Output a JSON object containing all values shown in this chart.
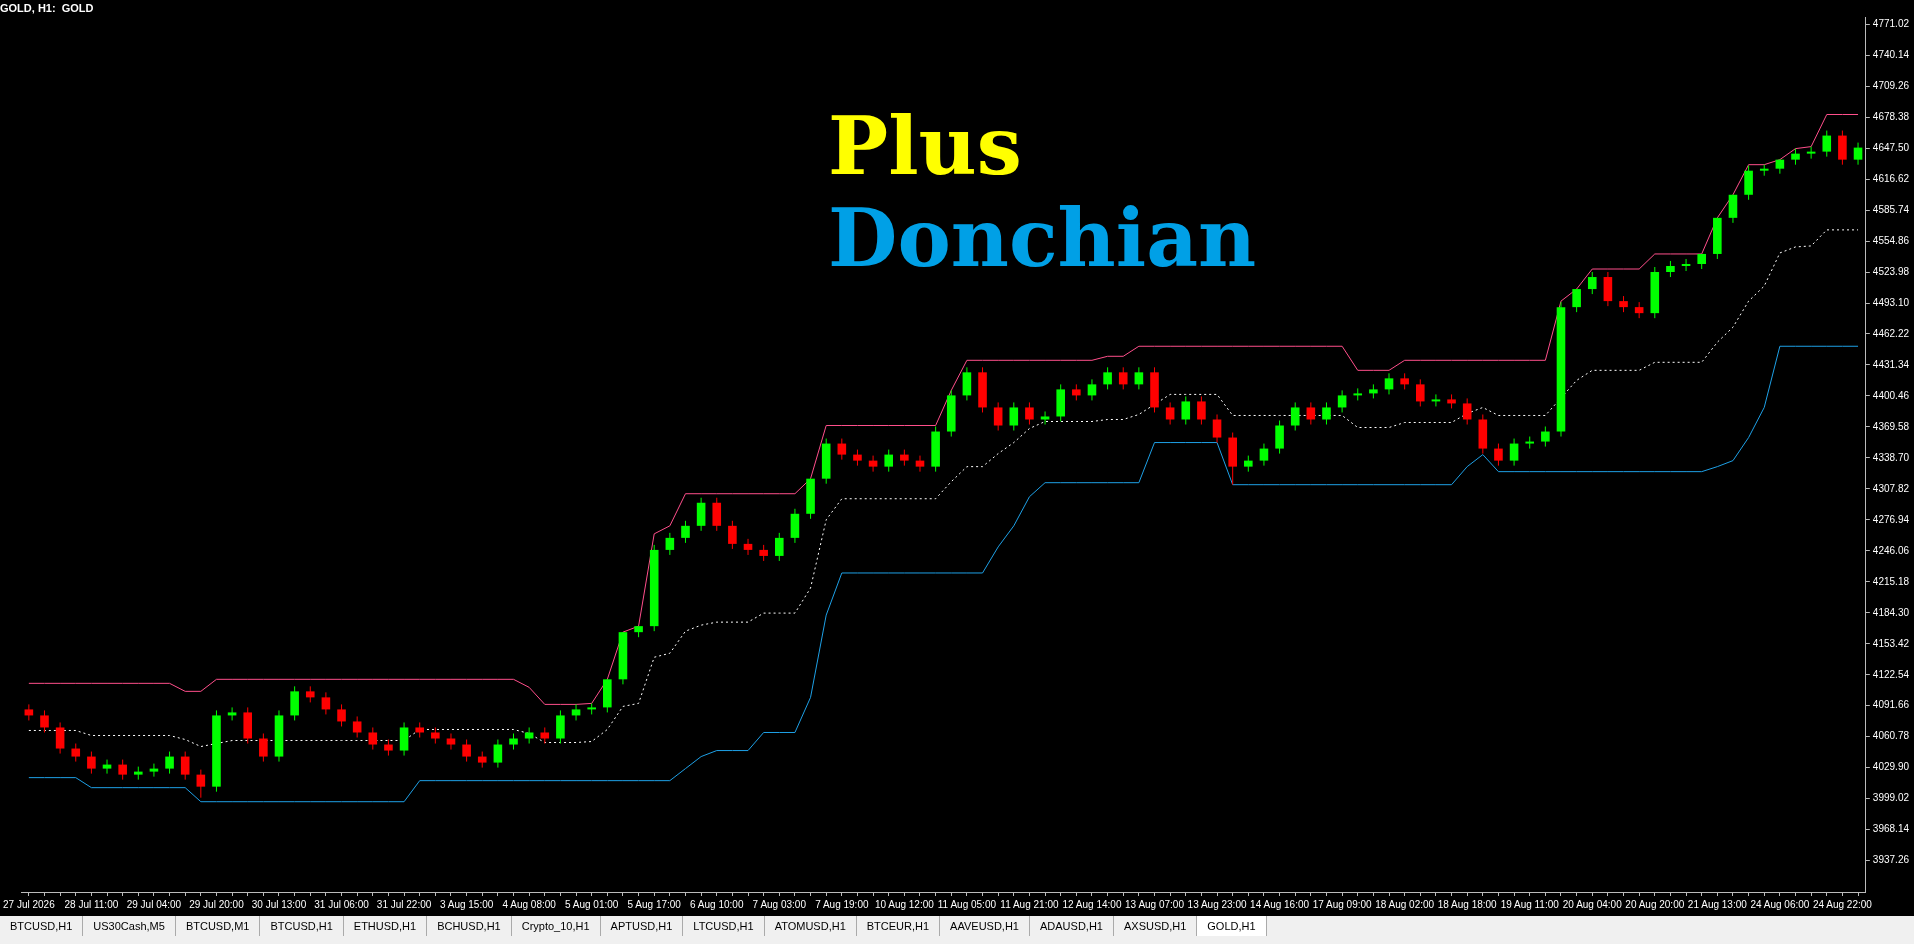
{
  "chart_data": {
    "type": "candlestick",
    "title": "GOLD, H1:  GOLD",
    "annotations": [
      "Plus",
      "Donchian",
      "BTCUSD,H1",
      "US30Cash,M5",
      "BTCUSD,M1",
      "BTCUSD,H1",
      "ETHUSD,H1",
      "BCHUSD,H1",
      "Crypto_10,H1",
      "APTUSD,H1",
      "LTCUSD,H1",
      "ATOMUSD,H1",
      "BTCEUR,H1",
      "AAVEUSD,H1",
      "ADAUSD,H1",
      "AXSUSD,H1",
      "GOLD,H1"
    ],
    "categories": [
      "27 Jul 2026",
      null,
      null,
      null,
      "28 Jul 11:00",
      null,
      null,
      null,
      "29 Jul 04:00",
      null,
      null,
      null,
      "29 Jul 20:00",
      null,
      null,
      null,
      "30 Jul 13:00",
      null,
      null,
      null,
      "31 Jul 06:00",
      null,
      null,
      null,
      "31 Jul 22:00",
      null,
      null,
      null,
      "3 Aug 15:00",
      null,
      null,
      null,
      "4 Aug 08:00",
      null,
      null,
      null,
      "5 Aug 01:00",
      null,
      null,
      null,
      "5 Aug 17:00",
      null,
      null,
      null,
      "6 Aug 10:00",
      null,
      null,
      null,
      "7 Aug 03:00",
      null,
      null,
      null,
      "7 Aug 19:00",
      null,
      null,
      null,
      "10 Aug 12:00",
      null,
      null,
      null,
      "11 Aug 05:00",
      null,
      null,
      null,
      "11 Aug 21:00",
      null,
      null,
      null,
      "12 Aug 14:00",
      null,
      null,
      null,
      "13 Aug 07:00",
      null,
      null,
      null,
      "13 Aug 23:00",
      null,
      null,
      null,
      "14 Aug 16:00",
      null,
      null,
      null,
      "17 Aug 09:00",
      null,
      null,
      null,
      "18 Aug 02:00",
      null,
      null,
      null,
      "18 Aug 18:00",
      null,
      null,
      null,
      "19 Aug 11:00",
      null,
      null,
      null,
      "20 Aug 04:00",
      null,
      null,
      null,
      "20 Aug 20:00",
      null,
      null,
      null,
      "21 Aug 13:00",
      null,
      null,
      null,
      "24 Aug 06:00",
      null,
      null,
      null,
      "24 Aug 22:00",
      null
    ],
    "ohlc": [
      [
        4088,
        4093,
        4077,
        4082
      ],
      [
        4082,
        4087,
        4065,
        4070
      ],
      [
        4070,
        4075,
        4044,
        4049
      ],
      [
        4049,
        4054,
        4036,
        4041
      ],
      [
        4041,
        4046,
        4024,
        4029
      ],
      [
        4029,
        4038,
        4024,
        4033
      ],
      [
        4033,
        4038,
        4018,
        4023
      ],
      [
        4023,
        4031,
        4018,
        4026
      ],
      [
        4026,
        4034,
        4021,
        4029
      ],
      [
        4029,
        4046,
        4024,
        4041
      ],
      [
        4041,
        4046,
        4018,
        4023
      ],
      [
        4023,
        4028,
        4000,
        4011
      ],
      [
        4011,
        4087,
        4006,
        4082
      ],
      [
        4082,
        4090,
        4077,
        4085
      ],
      [
        4085,
        4090,
        4054,
        4059
      ],
      [
        4059,
        4064,
        4036,
        4041
      ],
      [
        4041,
        4087,
        4036,
        4082
      ],
      [
        4082,
        4111,
        4077,
        4106
      ],
      [
        4106,
        4111,
        4095,
        4100
      ],
      [
        4100,
        4105,
        4083,
        4088
      ],
      [
        4088,
        4093,
        4071,
        4076
      ],
      [
        4076,
        4081,
        4060,
        4065
      ],
      [
        4065,
        4070,
        4048,
        4053
      ],
      [
        4053,
        4058,
        4042,
        4047
      ],
      [
        4047,
        4075,
        4042,
        4070
      ],
      [
        4070,
        4075,
        4060,
        4065
      ],
      [
        4065,
        4070,
        4054,
        4059
      ],
      [
        4059,
        4064,
        4048,
        4053
      ],
      [
        4053,
        4058,
        4036,
        4041
      ],
      [
        4041,
        4046,
        4030,
        4035
      ],
      [
        4035,
        4058,
        4030,
        4053
      ],
      [
        4053,
        4064,
        4048,
        4059
      ],
      [
        4059,
        4070,
        4054,
        4065
      ],
      [
        4065,
        4070,
        4054,
        4059
      ],
      [
        4059,
        4087,
        4054,
        4082
      ],
      [
        4082,
        4093,
        4077,
        4088
      ],
      [
        4088,
        4094,
        4083,
        4090
      ],
      [
        4090,
        4118,
        4085,
        4118
      ],
      [
        4118,
        4165,
        4113,
        4165
      ],
      [
        4165,
        4171,
        4160,
        4171
      ],
      [
        4171,
        4252,
        4166,
        4247
      ],
      [
        4247,
        4264,
        4242,
        4259
      ],
      [
        4259,
        4276,
        4254,
        4271
      ],
      [
        4271,
        4299,
        4266,
        4294
      ],
      [
        4294,
        4299,
        4266,
        4271
      ],
      [
        4271,
        4276,
        4248,
        4253
      ],
      [
        4253,
        4258,
        4242,
        4247
      ],
      [
        4247,
        4252,
        4236,
        4241
      ],
      [
        4241,
        4264,
        4236,
        4259
      ],
      [
        4259,
        4288,
        4254,
        4283
      ],
      [
        4283,
        4318,
        4278,
        4318
      ],
      [
        4318,
        4358,
        4313,
        4353
      ],
      [
        4353,
        4358,
        4337,
        4342
      ],
      [
        4342,
        4347,
        4331,
        4336
      ],
      [
        4336,
        4341,
        4325,
        4330
      ],
      [
        4330,
        4347,
        4325,
        4342
      ],
      [
        4342,
        4347,
        4331,
        4336
      ],
      [
        4336,
        4341,
        4325,
        4330
      ],
      [
        4330,
        4370,
        4325,
        4365
      ],
      [
        4365,
        4406,
        4360,
        4401
      ],
      [
        4401,
        4429,
        4396,
        4424
      ],
      [
        4424,
        4429,
        4384,
        4389
      ],
      [
        4389,
        4394,
        4366,
        4371
      ],
      [
        4371,
        4394,
        4366,
        4389
      ],
      [
        4389,
        4394,
        4372,
        4377
      ],
      [
        4377,
        4385,
        4372,
        4380
      ],
      [
        4380,
        4412,
        4375,
        4407
      ],
      [
        4407,
        4412,
        4396,
        4401
      ],
      [
        4401,
        4417,
        4396,
        4412
      ],
      [
        4412,
        4429,
        4407,
        4424
      ],
      [
        4424,
        4429,
        4407,
        4412
      ],
      [
        4412,
        4429,
        4407,
        4424
      ],
      [
        4424,
        4429,
        4384,
        4389
      ],
      [
        4389,
        4394,
        4372,
        4377
      ],
      [
        4377,
        4400,
        4372,
        4395
      ],
      [
        4395,
        4400,
        4372,
        4377
      ],
      [
        4377,
        4382,
        4354,
        4359
      ],
      [
        4359,
        4364,
        4312,
        4330
      ],
      [
        4330,
        4341,
        4325,
        4336
      ],
      [
        4336,
        4353,
        4331,
        4348
      ],
      [
        4348,
        4376,
        4343,
        4371
      ],
      [
        4371,
        4394,
        4366,
        4389
      ],
      [
        4389,
        4394,
        4372,
        4377
      ],
      [
        4377,
        4394,
        4372,
        4389
      ],
      [
        4389,
        4406,
        4384,
        4401
      ],
      [
        4401,
        4408,
        4396,
        4403
      ],
      [
        4403,
        4412,
        4398,
        4407
      ],
      [
        4407,
        4423,
        4402,
        4418
      ],
      [
        4418,
        4423,
        4407,
        4412
      ],
      [
        4412,
        4417,
        4390,
        4395
      ],
      [
        4395,
        4402,
        4390,
        4397
      ],
      [
        4397,
        4402,
        4388,
        4393
      ],
      [
        4393,
        4398,
        4372,
        4377
      ],
      [
        4377,
        4382,
        4343,
        4348
      ],
      [
        4348,
        4353,
        4331,
        4336
      ],
      [
        4336,
        4358,
        4331,
        4353
      ],
      [
        4353,
        4360,
        4348,
        4355
      ],
      [
        4355,
        4370,
        4350,
        4365
      ],
      [
        4365,
        4494,
        4360,
        4489
      ],
      [
        4489,
        4507,
        4484,
        4507
      ],
      [
        4507,
        4524,
        4502,
        4519
      ],
      [
        4519,
        4524,
        4490,
        4495
      ],
      [
        4495,
        4500,
        4484,
        4489
      ],
      [
        4489,
        4494,
        4478,
        4483
      ],
      [
        4483,
        4529,
        4478,
        4524
      ],
      [
        4524,
        4535,
        4519,
        4530
      ],
      [
        4530,
        4537,
        4525,
        4532
      ],
      [
        4532,
        4542,
        4527,
        4542
      ],
      [
        4542,
        4578,
        4537,
        4578
      ],
      [
        4578,
        4601,
        4573,
        4601
      ],
      [
        4601,
        4630,
        4596,
        4625
      ],
      [
        4625,
        4631,
        4620,
        4627
      ],
      [
        4627,
        4636,
        4622,
        4636
      ],
      [
        4636,
        4647,
        4631,
        4642
      ],
      [
        4642,
        4649,
        4637,
        4644
      ],
      [
        4644,
        4665,
        4639,
        4660
      ],
      [
        4660,
        4665,
        4631,
        4636
      ],
      [
        4636,
        4653,
        4631,
        4648
      ]
    ],
    "series": [
      {
        "type": "line",
        "color": "#ff4f8b",
        "line_style": "solid",
        "values": [
          4114,
          4114,
          4114,
          4114,
          4114,
          4114,
          4114,
          4114,
          4114,
          4114,
          4106,
          4106,
          4118,
          4118,
          4118,
          4118,
          4118,
          4118,
          4118,
          4118,
          4118,
          4118,
          4118,
          4118,
          4118,
          4118,
          4118,
          4118,
          4118,
          4118,
          4118,
          4118,
          4110,
          4093,
          4093,
          4093,
          4094,
          4118,
          4165,
          4171,
          4263,
          4271,
          4303,
          4303,
          4303,
          4303,
          4303,
          4303,
          4303,
          4303,
          4318,
          4371,
          4371,
          4371,
          4371,
          4371,
          4371,
          4371,
          4371,
          4406,
          4436,
          4436,
          4436,
          4436,
          4436,
          4436,
          4436,
          4436,
          4436,
          4440,
          4440,
          4450,
          4450,
          4450,
          4450,
          4450,
          4450,
          4450,
          4450,
          4450,
          4450,
          4450,
          4450,
          4450,
          4450,
          4426,
          4426,
          4426,
          4436,
          4436,
          4436,
          4436,
          4436,
          4436,
          4436,
          4436,
          4436,
          4436,
          4495,
          4507,
          4527,
          4527,
          4527,
          4527,
          4542,
          4542,
          4542,
          4542,
          4578,
          4601,
          4631,
          4631,
          4636,
          4647,
          4649,
          4681,
          4681,
          4681
        ]
      },
      {
        "type": "line",
        "color": "#1ea0e6",
        "line_style": "solid",
        "values": [
          4020,
          4020,
          4020,
          4020,
          4010,
          4010,
          4010,
          4010,
          4010,
          4010,
          4010,
          3996,
          3996,
          3996,
          3996,
          3996,
          3996,
          3996,
          3996,
          3996,
          3996,
          3996,
          3996,
          3996,
          3996,
          4017,
          4017,
          4017,
          4017,
          4017,
          4017,
          4017,
          4017,
          4017,
          4017,
          4017,
          4017,
          4017,
          4017,
          4017,
          4017,
          4017,
          4029,
          4041,
          4047,
          4047,
          4047,
          4065,
          4065,
          4065,
          4100,
          4182,
          4224,
          4224,
          4224,
          4224,
          4224,
          4224,
          4224,
          4224,
          4224,
          4224,
          4250,
          4271,
          4300,
          4314,
          4314,
          4314,
          4314,
          4314,
          4314,
          4314,
          4354,
          4354,
          4354,
          4354,
          4354,
          4312,
          4312,
          4312,
          4312,
          4312,
          4312,
          4312,
          4312,
          4312,
          4312,
          4312,
          4312,
          4312,
          4312,
          4312,
          4330,
          4342,
          4325,
          4325,
          4325,
          4325,
          4325,
          4325,
          4325,
          4325,
          4325,
          4325,
          4325,
          4325,
          4325,
          4325,
          4330,
          4336,
          4359,
          4389,
          4450,
          4450,
          4450,
          4450,
          4450,
          4450
        ]
      },
      {
        "type": "line",
        "color": "#ffffff",
        "line_style": "dotted",
        "values": [
          4067,
          4067,
          null,
          4067,
          4062,
          4062,
          4062,
          4062,
          4062,
          4062,
          4058,
          4051,
          null,
          4057,
          4057,
          null,
          null,
          4057,
          4057,
          4057,
          4057,
          4057,
          4057,
          4057,
          4057,
          4068,
          4068,
          4068,
          4068,
          4068,
          4068,
          4068,
          4064,
          4055,
          4055,
          4055,
          4056,
          4068,
          4091,
          4094,
          4140,
          4144,
          4166,
          4172,
          4175,
          4175,
          4175,
          4184,
          4184,
          4184,
          4209,
          4277,
          4298,
          4298,
          4298,
          4298,
          4298,
          4298,
          4298,
          4315,
          4330,
          4330,
          4343,
          4354,
          4368,
          4375,
          4375,
          4375,
          4375,
          4377,
          4377,
          4382,
          null,
          4402,
          4402,
          4402,
          4402,
          4381,
          4381,
          4381,
          4381,
          4381,
          4381,
          4381,
          4381,
          4369,
          4369,
          4369,
          4374,
          4374,
          4374,
          4374,
          4383,
          4389,
          4381,
          4381,
          4381,
          4381,
          null,
          4416,
          4426,
          4426,
          4426,
          4426,
          4434,
          4434,
          4434,
          4434,
          4454,
          4469,
          4495,
          4510,
          4543,
          4549,
          4550,
          4566,
          4566,
          4566
        ]
      }
    ],
    "ylim": [
      3906,
      4778
    ],
    "yticks": [
      3937.26,
      3968.14,
      3999.02,
      {
        "value": 4029.9,
        "label": "4029.90"
      },
      4060.78,
      4091.66,
      4122.54,
      4153.42,
      {
        "value": 4184.3,
        "label": "4184.30"
      },
      4215.18,
      4246.06,
      4276.94,
      4307.82,
      {
        "value": 4338.7,
        "label": "4338.70"
      },
      4369.58,
      4400.46,
      4431.34,
      4462.22,
      {
        "value": 4493.1,
        "label": "4493.10"
      },
      4523.98,
      4554.86,
      4585.74,
      4616.62,
      {
        "value": 4647.5,
        "label": "4647.50"
      },
      4678.38,
      4709.26,
      4740.14,
      4771.02
    ]
  }
}
